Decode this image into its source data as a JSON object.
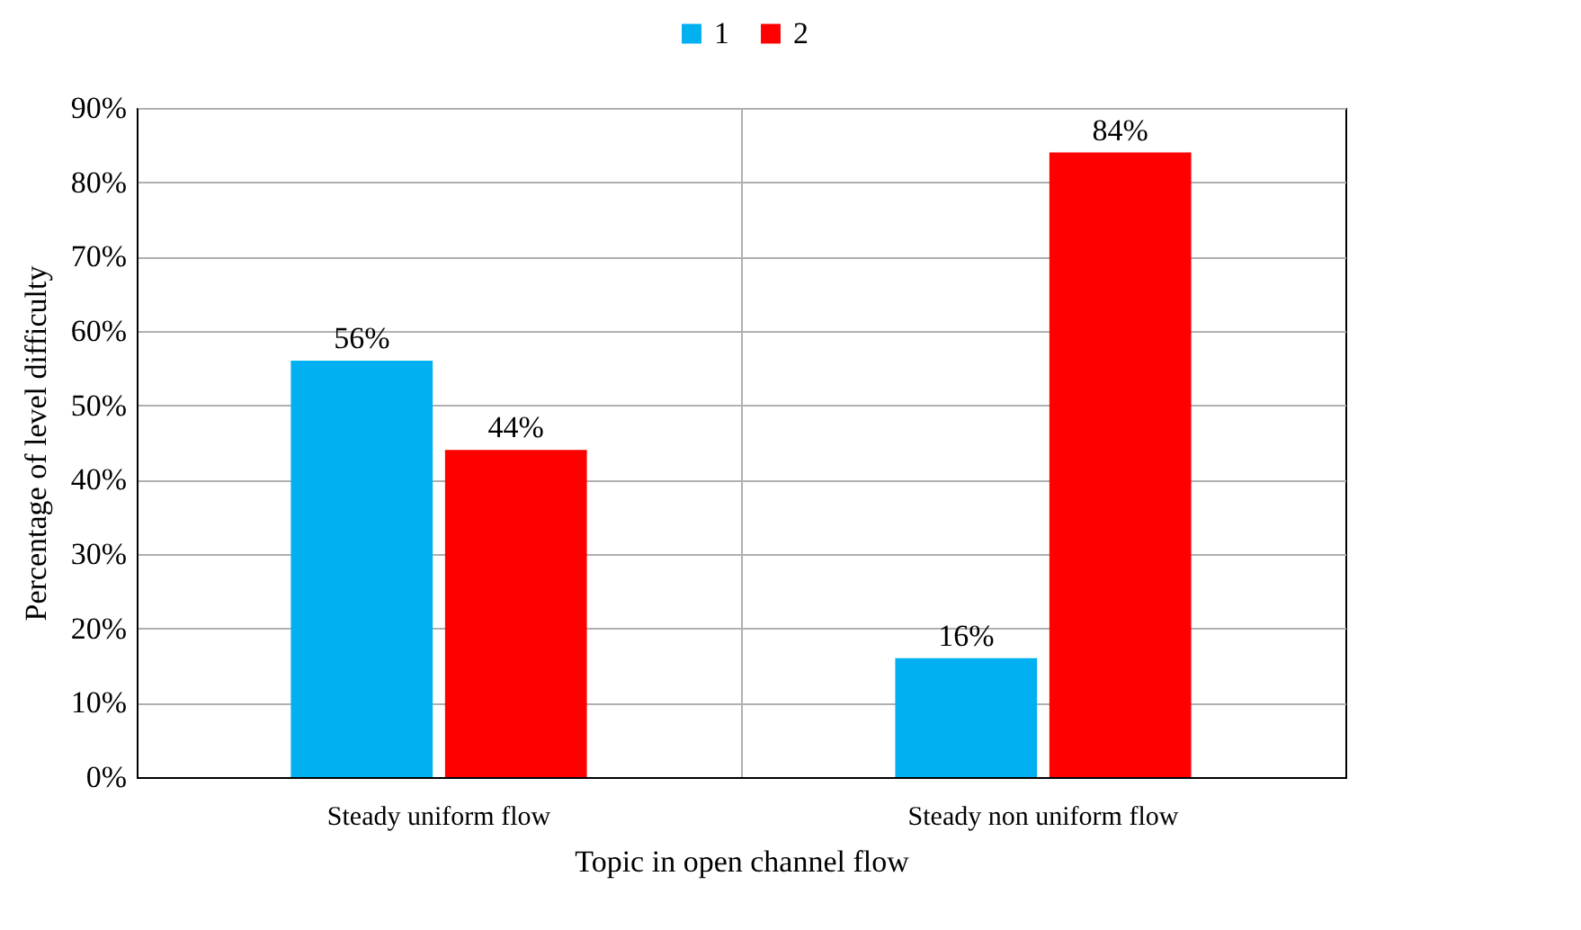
{
  "chart_data": {
    "type": "bar",
    "xlabel": "Topic in open channel flow",
    "ylabel": "Percentage of level difficulty",
    "categories": [
      "Steady uniform flow",
      "Steady non uniform flow"
    ],
    "series": [
      {
        "name": "1",
        "color": "#00b0f0",
        "values": [
          56,
          16
        ],
        "value_labels": [
          "56%",
          "16%"
        ]
      },
      {
        "name": "2",
        "color": "#ff0000",
        "values": [
          44,
          84
        ],
        "value_labels": [
          "44%",
          "84%"
        ]
      }
    ],
    "ylim": [
      0,
      90
    ],
    "yticks": [
      {
        "value": 0,
        "label": "0%"
      },
      {
        "value": 10,
        "label": "10%"
      },
      {
        "value": 20,
        "label": "20%"
      },
      {
        "value": 30,
        "label": "30%"
      },
      {
        "value": 40,
        "label": "40%"
      },
      {
        "value": 50,
        "label": "50%"
      },
      {
        "value": 60,
        "label": "60%"
      },
      {
        "value": 70,
        "label": "70%"
      },
      {
        "value": 80,
        "label": "80%"
      },
      {
        "value": 90,
        "label": "90%"
      }
    ],
    "grid": true,
    "legend": "top"
  }
}
